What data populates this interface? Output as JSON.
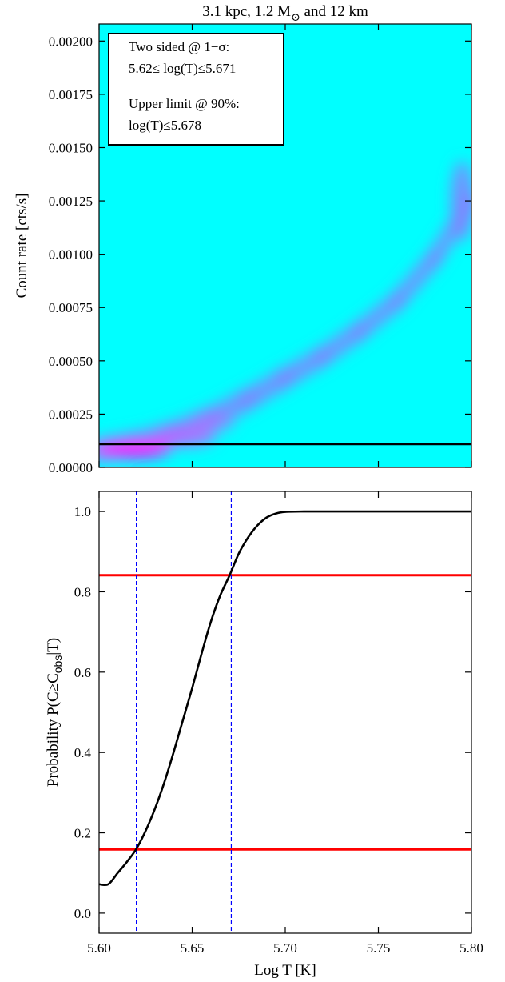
{
  "title": "3.1 kpc, 1.2 M",
  "title_sub": "⊙",
  "title_rest": " and 12 km",
  "annotation": {
    "line1": "Two sided @ 1−σ:",
    "line2": "5.62≤  log(T)≤5.671",
    "line3": "Upper limit @ 90%:",
    "line4": "log(T)≤5.678"
  },
  "xlabel": "Log T [K]",
  "top_ylabel": "Count rate [cts/s]",
  "bottom_ylabel_parts": {
    "pre": "Probability P(C≥C",
    "sub": "obs",
    "post": "|T)"
  },
  "colors": {
    "background_cyan": "#00ffff",
    "density_violet": "#8a7cff",
    "density_magenta": "#ff10ff",
    "cdf_line": "#000000",
    "hline_red": "#ff0000",
    "vline_blue": "#0000ff"
  },
  "chart_data": [
    {
      "type": "heatmap",
      "description_free": true,
      "xlim": [
        5.6,
        5.8
      ],
      "ylim": [
        0.0,
        0.00208
      ],
      "yticks": [
        "0.00000",
        "0.00025",
        "0.00050",
        "0.00075",
        "0.00100",
        "0.00125",
        "0.00150",
        "0.00175",
        "0.00200"
      ],
      "ytick_values": [
        0.0,
        0.00025,
        0.0005,
        0.00075,
        0.001,
        0.00125,
        0.0015,
        0.00175,
        0.002
      ],
      "xtick_values": [
        5.6,
        5.65,
        5.7,
        5.75,
        5.8
      ],
      "ridge": {
        "x": [
          5.6,
          5.62,
          5.64,
          5.66,
          5.68,
          5.7,
          5.72,
          5.74,
          5.76,
          5.78,
          5.8
        ],
        "y": [
          8e-05,
          0.00011,
          0.00016,
          0.00023,
          0.00032,
          0.00042,
          0.00052,
          0.00064,
          0.00078,
          0.00098,
          0.00125
        ]
      },
      "observed_count_rate": 0.00011,
      "ylabel": "Count rate [cts/s]"
    },
    {
      "type": "line",
      "xlim": [
        5.6,
        5.8
      ],
      "ylim": [
        -0.05,
        1.05
      ],
      "xticks": [
        "5.60",
        "5.65",
        "5.70",
        "5.75",
        "5.80"
      ],
      "xtick_values": [
        5.6,
        5.65,
        5.7,
        5.75,
        5.8
      ],
      "yticks": [
        "0.0",
        "0.2",
        "0.4",
        "0.6",
        "0.8",
        "1.0"
      ],
      "ytick_values": [
        0.0,
        0.2,
        0.4,
        0.6,
        0.8,
        1.0
      ],
      "series": [
        {
          "x": [
            5.6,
            5.605,
            5.61,
            5.615,
            5.62,
            5.625,
            5.63,
            5.635,
            5.64,
            5.645,
            5.65,
            5.655,
            5.66,
            5.665,
            5.67,
            5.675,
            5.68,
            5.685,
            5.69,
            5.695,
            5.7,
            5.71,
            5.72,
            5.75,
            5.8
          ],
          "y": [
            0.072,
            0.072,
            0.1,
            0.128,
            0.16,
            0.205,
            0.26,
            0.325,
            0.4,
            0.48,
            0.56,
            0.645,
            0.725,
            0.79,
            0.84,
            0.895,
            0.935,
            0.965,
            0.985,
            0.995,
            0.999,
            1.0,
            1.0,
            1.0,
            1.0
          ]
        }
      ],
      "hlines": [
        0.1587,
        0.8413
      ],
      "vlines": [
        5.62,
        5.671
      ],
      "xlabel": "Log T [K]"
    }
  ]
}
